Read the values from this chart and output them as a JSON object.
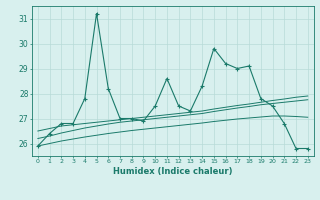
{
  "xlabel": "Humidex (Indice chaleur)",
  "x": [
    0,
    1,
    2,
    3,
    4,
    5,
    6,
    7,
    8,
    9,
    10,
    11,
    12,
    13,
    14,
    15,
    16,
    17,
    18,
    19,
    20,
    21,
    22,
    23
  ],
  "y_main": [
    25.9,
    26.4,
    26.8,
    26.8,
    27.8,
    31.2,
    28.2,
    27.0,
    27.0,
    26.9,
    27.5,
    28.6,
    27.5,
    27.3,
    28.3,
    29.8,
    29.2,
    29.0,
    29.1,
    27.8,
    27.5,
    26.8,
    25.8,
    25.8
  ],
  "y_trend1": [
    26.5,
    26.6,
    26.7,
    26.75,
    26.8,
    26.85,
    26.9,
    26.95,
    27.0,
    27.05,
    27.1,
    27.15,
    27.2,
    27.25,
    27.3,
    27.38,
    27.45,
    27.52,
    27.58,
    27.65,
    27.72,
    27.78,
    27.85,
    27.9
  ],
  "y_trend2": [
    26.2,
    26.3,
    26.42,
    26.52,
    26.62,
    26.7,
    26.78,
    26.85,
    26.9,
    26.95,
    27.0,
    27.05,
    27.1,
    27.15,
    27.2,
    27.28,
    27.35,
    27.42,
    27.48,
    27.55,
    27.6,
    27.65,
    27.7,
    27.75
  ],
  "y_trend3": [
    25.9,
    26.0,
    26.1,
    26.18,
    26.26,
    26.33,
    26.4,
    26.46,
    26.52,
    26.57,
    26.62,
    26.67,
    26.72,
    26.77,
    26.82,
    26.88,
    26.93,
    26.98,
    27.02,
    27.06,
    27.1,
    27.1,
    27.08,
    27.05
  ],
  "line_color": "#1a7a6a",
  "bg_color": "#d8f0ee",
  "grid_color": "#b8dbd8",
  "ylim": [
    25.5,
    31.5
  ],
  "yticks": [
    26,
    27,
    28,
    29,
    30,
    31
  ]
}
